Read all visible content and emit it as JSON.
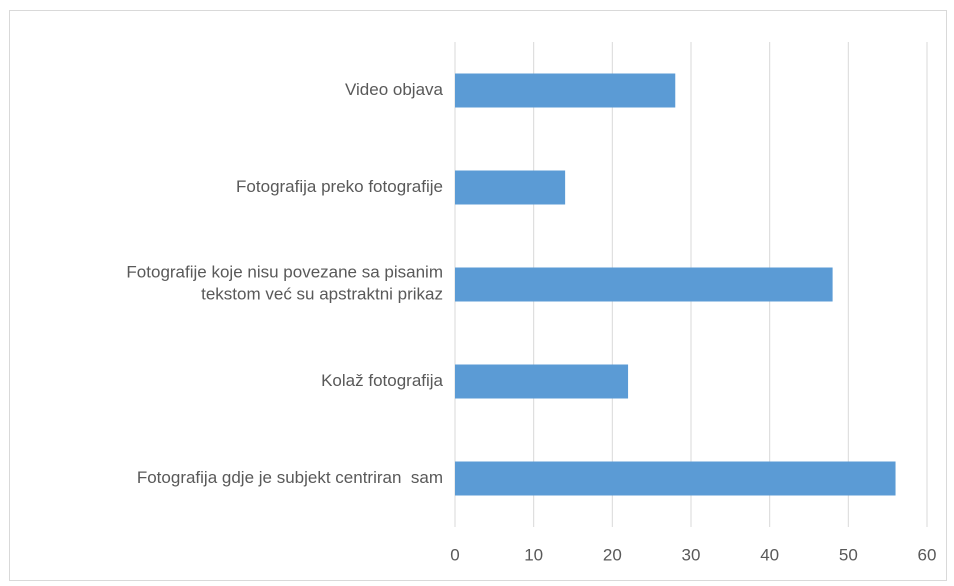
{
  "chart_data": {
    "type": "bar",
    "orientation": "horizontal",
    "categories": [
      "Video objava",
      "Fotografija preko fotografije",
      "Fotografije koje nisu povezane sa pisanim\ntekstom već su apstraktni prikaz",
      "Kolaž fotografija",
      "Fotografija gdje je subjekt centriran  sam"
    ],
    "values": [
      28,
      14,
      48,
      22,
      56
    ],
    "color": "#5b9bd5",
    "xlim": [
      0,
      60
    ],
    "xticks": [
      0,
      10,
      20,
      30,
      40,
      50,
      60
    ],
    "grid": true
  }
}
